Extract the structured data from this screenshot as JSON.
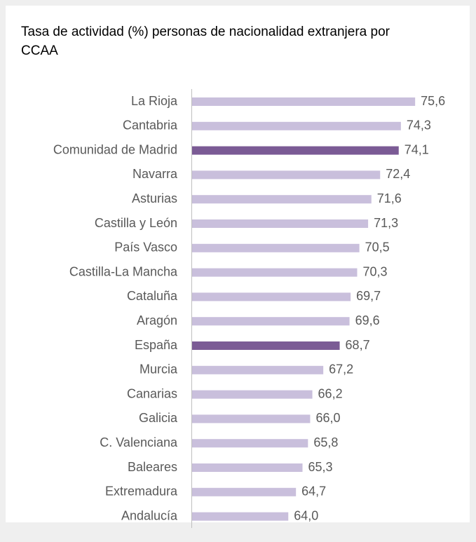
{
  "chart_data": {
    "type": "hbar",
    "title": "Tasa de actividad (%) personas de nacionalidad extranjera por CCAA",
    "categories": [
      "La Rioja",
      "Cantabria",
      "Comunidad de Madrid",
      "Navarra",
      "Asturias",
      "Castilla y León",
      "País Vasco",
      "Castilla-La Mancha",
      "Cataluña",
      "Aragón",
      "España",
      "Murcia",
      "Canarias",
      "Galicia",
      "C. Valenciana",
      "Baleares",
      "Extremadura",
      "Andalucía"
    ],
    "values": [
      75.6,
      74.3,
      74.1,
      72.4,
      71.6,
      71.3,
      70.5,
      70.3,
      69.7,
      69.6,
      68.7,
      67.2,
      66.2,
      66.0,
      65.8,
      65.3,
      64.7,
      64.0
    ],
    "value_labels": [
      "75,6",
      "74,3",
      "74,1",
      "72,4",
      "71,6",
      "71,3",
      "70,5",
      "70,3",
      "69,7",
      "69,6",
      "68,7",
      "67,2",
      "66,2",
      "66,0",
      "65,8",
      "65,3",
      "64,7",
      "64,0"
    ],
    "colors": [
      "#c9bfdc",
      "#c9bfdc",
      "#7b5b95",
      "#c9bfdc",
      "#c9bfdc",
      "#c9bfdc",
      "#c9bfdc",
      "#c9bfdc",
      "#c9bfdc",
      "#c9bfdc",
      "#7b5b95",
      "#c9bfdc",
      "#c9bfdc",
      "#c9bfdc",
      "#c9bfdc",
      "#c9bfdc",
      "#c9bfdc",
      "#c9bfdc"
    ],
    "xlim": [
      55.2,
      77
    ]
  }
}
